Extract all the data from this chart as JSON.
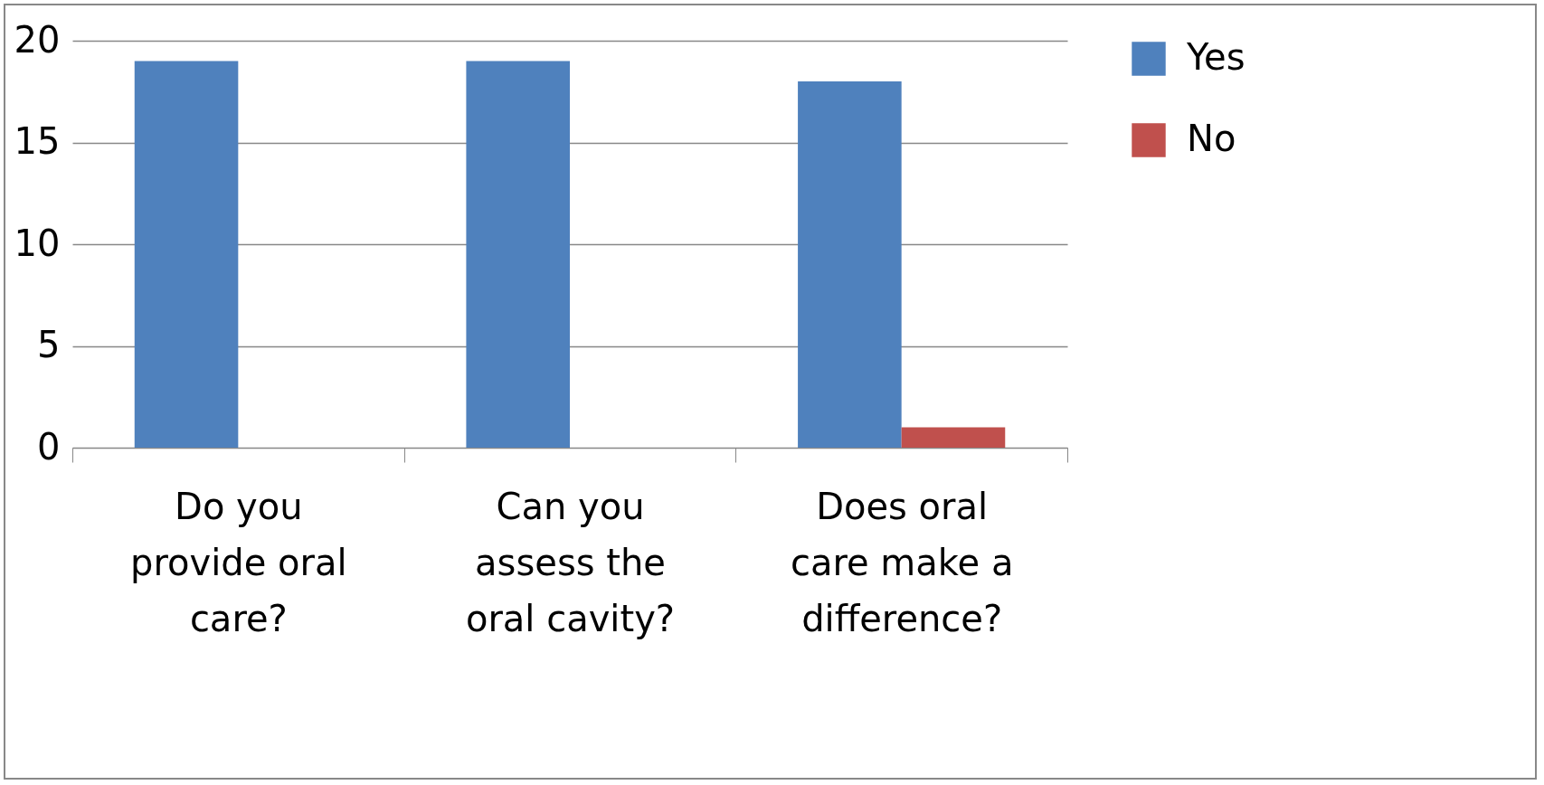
{
  "chart_data": {
    "type": "bar",
    "categories": [
      "Do you provide oral care?",
      "Can you assess the oral cavity?",
      "Does oral care make a difference?"
    ],
    "series": [
      {
        "name": "Yes",
        "color": "#4f81bd",
        "values": [
          19,
          19,
          18
        ]
      },
      {
        "name": "No",
        "color": "#c0504d",
        "values": [
          0,
          0,
          1
        ]
      }
    ],
    "ylim": [
      0,
      20
    ],
    "yticks": [
      0,
      5,
      10,
      15,
      20
    ],
    "grid": "y",
    "legend": "right"
  }
}
